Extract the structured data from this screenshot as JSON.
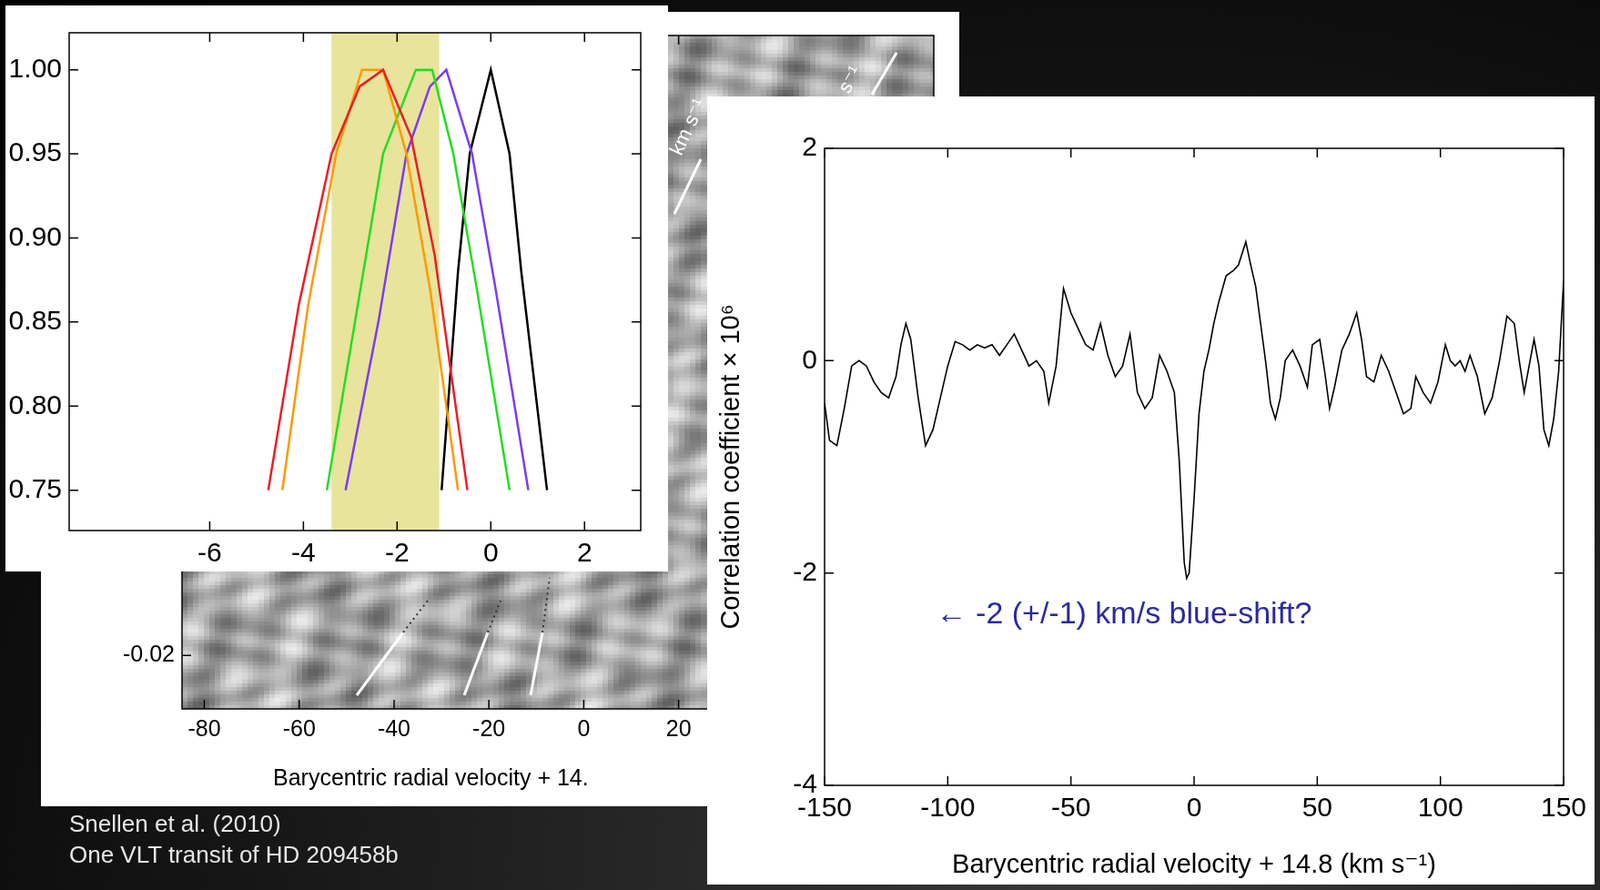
{
  "chart_data": [
    {
      "type": "heatmap",
      "x_label": "Barycentric radial velocity + 14.",
      "xlim": [
        -84.7,
        73.8
      ],
      "xticks": [
        -80,
        -60,
        -40,
        -20,
        0,
        20
      ],
      "ylim": [
        -0.0236,
        0.0217
      ],
      "yticks": [
        -0.02
      ],
      "grid": false,
      "annotations": [
        "km s⁻¹",
        "s⁻¹"
      ]
    },
    {
      "type": "line",
      "xlim": [
        -9,
        3.2
      ],
      "xticks": [
        -6,
        -4,
        -2,
        0,
        2
      ],
      "ylim": [
        0.726,
        1.022
      ],
      "yticks": [
        0.75,
        {
          "value": 0.8,
          "label": "0.80"
        },
        0.85,
        {
          "value": 0.9,
          "label": "0.90"
        },
        0.95,
        {
          "value": 1,
          "label": "1.00"
        }
      ],
      "grid": false,
      "highlight_range": [
        -3.4,
        -1.1
      ],
      "series": [
        {
          "color": "#ee1c25",
          "x": [
            -4.75,
            -4.1,
            -3.4,
            -2.8,
            -2.3,
            -1.7,
            -1.2,
            -0.5
          ],
          "values": [
            0.75,
            0.86,
            0.95,
            0.99,
            1.0,
            0.96,
            0.89,
            0.75
          ]
        },
        {
          "color": "#ff9900",
          "x": [
            -4.45,
            -3.9,
            -3.3,
            -2.75,
            -2.3,
            -1.8,
            -1.3,
            -0.7
          ],
          "values": [
            0.75,
            0.86,
            0.95,
            1.0,
            1.0,
            0.95,
            0.87,
            0.75
          ]
        },
        {
          "color": "#22dd22",
          "x": [
            -3.5,
            -2.9,
            -2.3,
            -1.6,
            -1.25,
            -0.8,
            -0.3,
            0.4
          ],
          "values": [
            0.75,
            0.85,
            0.95,
            1.0,
            1.0,
            0.95,
            0.87,
            0.75
          ]
        },
        {
          "color": "#7a3cf0",
          "x": [
            -3.1,
            -2.4,
            -1.8,
            -1.3,
            -0.95,
            -0.4,
            0.1,
            0.8
          ],
          "values": [
            0.75,
            0.85,
            0.95,
            0.99,
            1.0,
            0.95,
            0.87,
            0.75
          ]
        },
        {
          "color": "#000000",
          "x": [
            -1.05,
            -0.7,
            -0.45,
            0,
            0.4,
            0.65,
            1.2
          ],
          "values": [
            0.75,
            0.88,
            0.95,
            1.0,
            0.95,
            0.88,
            0.75
          ]
        }
      ]
    },
    {
      "type": "line",
      "x_label": "Barycentric radial velocity + 14.8 (km s⁻¹)",
      "y_label": "Correlation coefficient × 10⁶",
      "xlim": [
        -150,
        150
      ],
      "xticks": [
        -150,
        -100,
        -50,
        0,
        50,
        100,
        150
      ],
      "ylim": [
        -4,
        2
      ],
      "yticks": [
        -4,
        -2,
        0,
        2
      ],
      "grid": false,
      "color": "#000000",
      "annotation": "← -2 (+/-1) km/s blue-shift?",
      "x": [
        -150,
        -148,
        -145,
        -142,
        -139,
        -136,
        -133,
        -130,
        -127,
        -124,
        -121,
        -119,
        -117,
        -115,
        -112,
        -109,
        -106,
        -103,
        -100,
        -97,
        -94,
        -91,
        -88,
        -85,
        -82,
        -79,
        -76,
        -73,
        -70,
        -67,
        -64,
        -61,
        -59,
        -56,
        -53,
        -50,
        -47,
        -44,
        -41,
        -38,
        -35,
        -32,
        -29,
        -26,
        -23,
        -20,
        -17,
        -14,
        -11,
        -8,
        -6,
        -4,
        -3,
        -2,
        0,
        2,
        4,
        6,
        8,
        10,
        13,
        16,
        18,
        21,
        23,
        25,
        27,
        29,
        31,
        33,
        35,
        37,
        40,
        43,
        46,
        48,
        51,
        53,
        55,
        57,
        60,
        63,
        66,
        68,
        70,
        73,
        76,
        79,
        82,
        85,
        88,
        90,
        93,
        96,
        99,
        102,
        104,
        106,
        108,
        110,
        112,
        115,
        118,
        121,
        124,
        127,
        130,
        132,
        134,
        136,
        138,
        140,
        142,
        144,
        146,
        148,
        150
      ],
      "values": [
        -0.4,
        -0.75,
        -0.8,
        -0.45,
        -0.05,
        0.0,
        -0.05,
        -0.2,
        -0.3,
        -0.35,
        -0.15,
        0.15,
        0.35,
        0.2,
        -0.35,
        -0.8,
        -0.65,
        -0.35,
        -0.05,
        0.18,
        0.15,
        0.1,
        0.15,
        0.12,
        0.15,
        0.05,
        0.15,
        0.25,
        0.1,
        -0.05,
        0.0,
        -0.1,
        -0.4,
        -0.05,
        0.68,
        0.45,
        0.3,
        0.15,
        0.1,
        0.35,
        0.05,
        -0.15,
        -0.05,
        0.25,
        -0.3,
        -0.45,
        -0.35,
        0.05,
        -0.1,
        -0.3,
        -0.95,
        -1.9,
        -2.05,
        -2.0,
        -1.3,
        -0.5,
        -0.1,
        0.1,
        0.35,
        0.55,
        0.8,
        0.85,
        0.9,
        1.12,
        0.9,
        0.7,
        0.35,
        0.0,
        -0.4,
        -0.55,
        -0.35,
        0.0,
        0.1,
        -0.05,
        -0.25,
        0.15,
        0.2,
        -0.1,
        -0.45,
        -0.25,
        0.1,
        0.25,
        0.45,
        0.2,
        -0.15,
        -0.2,
        0.05,
        -0.1,
        -0.3,
        -0.5,
        -0.45,
        -0.15,
        -0.3,
        -0.4,
        -0.2,
        0.15,
        0.0,
        -0.05,
        0.0,
        -0.1,
        0.05,
        -0.15,
        -0.5,
        -0.35,
        0.0,
        0.42,
        0.35,
        0.0,
        -0.3,
        -0.05,
        0.2,
        -0.05,
        -0.65,
        -0.8,
        -0.55,
        -0.1,
        0.75
      ]
    }
  ],
  "caption": [
    "Snellen et al. (2010)",
    "One VLT transit of HD 209458b"
  ]
}
